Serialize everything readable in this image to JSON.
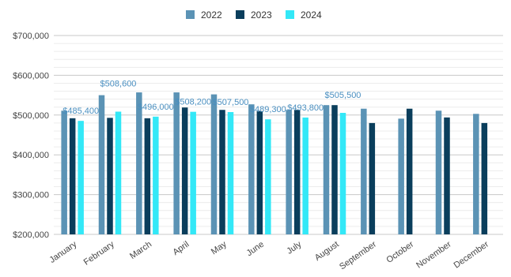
{
  "chart_data": {
    "type": "bar",
    "categories": [
      "January",
      "February",
      "March",
      "April",
      "May",
      "June",
      "July",
      "August",
      "September",
      "October",
      "November",
      "December"
    ],
    "series": [
      {
        "name": "2022",
        "color": "#5b93b5",
        "values": [
          511000,
          550000,
          557000,
          557000,
          552000,
          527000,
          513000,
          525000,
          516000,
          491000,
          511000,
          503000
        ]
      },
      {
        "name": "2023",
        "color": "#0a3e5c",
        "values": [
          492000,
          493000,
          492000,
          519000,
          513000,
          510000,
          513000,
          525000,
          480000,
          516000,
          494000,
          480000
        ]
      },
      {
        "name": "2024",
        "color": "#33e8f7",
        "values": [
          485400,
          508600,
          496000,
          508200,
          507500,
          489300,
          493800,
          505500,
          null,
          null,
          null,
          null
        ]
      }
    ],
    "data_labels": {
      "series": "2024",
      "labels": [
        "$485,400",
        "$508,600",
        "$496,000",
        "$508,200",
        "$507,500",
        "$489,300",
        "$493,800",
        "$505,500",
        "",
        "",
        "",
        ""
      ]
    },
    "y_ticks": [
      "$700,000",
      "$600,000",
      "$500,000",
      "$400,000",
      "$300,000",
      "$200,000"
    ],
    "ylim": [
      200000,
      700000
    ],
    "grid": true,
    "legend_position": "top-center"
  }
}
